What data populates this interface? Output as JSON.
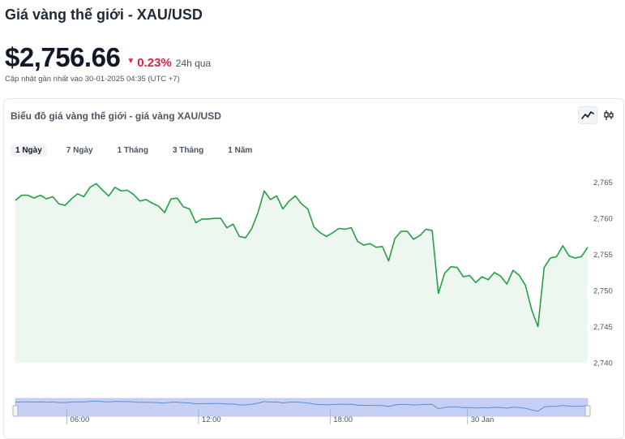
{
  "header": {
    "title": "Giá vàng thế giới - XAU/USD",
    "price": "$2,756.66",
    "change_arrow": "▼",
    "change_pct": "0.23%",
    "change_period": "24h qua",
    "updated": "Cập nhật gần nhất vào 30-01-2025 04:35 (UTC +7)"
  },
  "card": {
    "title": "Biểu đồ giá vàng thế giới - giá vàng XAU/USD",
    "view_buttons": [
      {
        "icon": "line-chart-icon",
        "active": true
      },
      {
        "icon": "candlestick-icon",
        "active": false
      }
    ],
    "tabs": [
      {
        "label": "1 Ngày",
        "active": true
      },
      {
        "label": "7 Ngày",
        "active": false
      },
      {
        "label": "1 Tháng",
        "active": false
      },
      {
        "label": "3 Tháng",
        "active": false
      },
      {
        "label": "1 Năm",
        "active": false
      }
    ]
  },
  "colors": {
    "line": "#22a045",
    "area": "#edf7ef",
    "navigator_fill": "#c6d0f5",
    "navigator_line": "#5b8fd6",
    "down": "#dc2346"
  },
  "chart_data": {
    "type": "area",
    "y_ticks": [
      "2,740",
      "2,745",
      "2,750",
      "2,755",
      "2,760",
      "2,765"
    ],
    "ylim": [
      2740,
      2767.2
    ],
    "navigator_ticks": [
      {
        "label": "06:00",
        "at": 0.09
      },
      {
        "label": "12:00",
        "at": 0.32
      },
      {
        "label": "18:00",
        "at": 0.55
      },
      {
        "label": "30 Jan",
        "at": 0.79
      }
    ],
    "values": [
      2762.5,
      2763.2,
      2763.2,
      2762.8,
      2763.2,
      2762.7,
      2763.0,
      2762.0,
      2761.8,
      2762.7,
      2763.4,
      2763.0,
      2764.3,
      2764.8,
      2763.9,
      2763.1,
      2764.3,
      2763.8,
      2763.9,
      2763.3,
      2762.4,
      2762.6,
      2762.1,
      2761.7,
      2760.8,
      2762.7,
      2762.8,
      2761.6,
      2761.3,
      2759.4,
      2759.9,
      2759.9,
      2760.0,
      2760.0,
      2758.7,
      2759.2,
      2757.5,
      2757.3,
      2758.6,
      2760.8,
      2763.8,
      2762.6,
      2763.1,
      2761.3,
      2762.4,
      2763.1,
      2762.0,
      2761.3,
      2758.8,
      2758.0,
      2757.5,
      2758.0,
      2758.6,
      2758.5,
      2758.7,
      2756.8,
      2756.3,
      2756.5,
      2756.0,
      2756.1,
      2754.1,
      2757.2,
      2758.2,
      2758.2,
      2757.1,
      2757.6,
      2758.5,
      2758.3,
      2749.6,
      2752.4,
      2753.3,
      2753.2,
      2751.9,
      2752.1,
      2751.1,
      2751.9,
      2751.5,
      2752.5,
      2752.0,
      2750.9,
      2752.8,
      2752.1,
      2750.7,
      2747.3,
      2745.0,
      2753.2,
      2754.5,
      2754.7,
      2756.2,
      2754.8,
      2754.5,
      2754.7,
      2756.0
    ]
  }
}
